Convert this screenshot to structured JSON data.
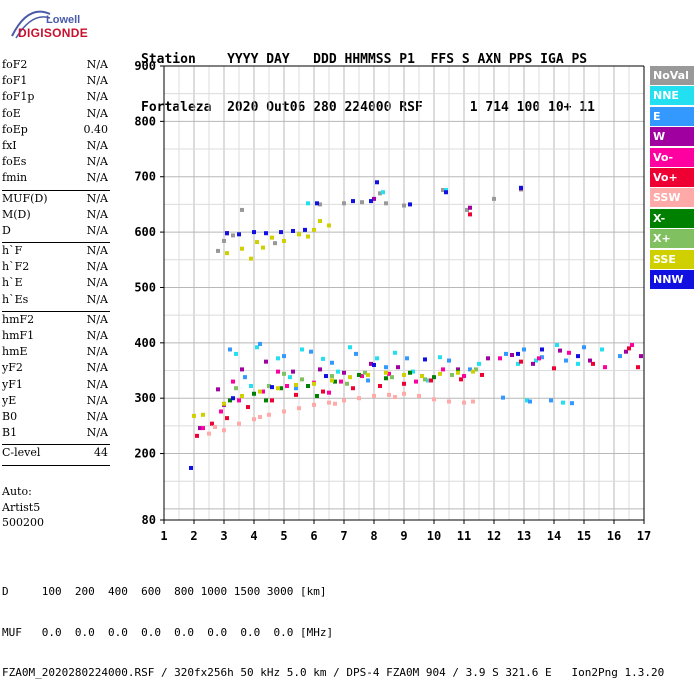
{
  "logo": {
    "top": "Lowell",
    "bottom": "DIGISONDE"
  },
  "header": {
    "line1": "Station    YYYY DAY   DDD HHMMSS P1  FFS S AXN PPS IGA PS",
    "line2": "Fortaleza  2020 Out06 280 224000 RSF      1 714 100 10+ 11"
  },
  "param_groups": [
    [
      {
        "label": "foF2",
        "value": "N/A"
      },
      {
        "label": "foF1",
        "value": "N/A"
      },
      {
        "label": "foF1p",
        "value": "N/A"
      },
      {
        "label": "foE",
        "value": "N/A"
      },
      {
        "label": "foEp",
        "value": "0.40"
      },
      {
        "label": "fxI",
        "value": "N/A"
      },
      {
        "label": "foEs",
        "value": "N/A"
      },
      {
        "label": "fmin",
        "value": "N/A"
      }
    ],
    [
      {
        "label": "MUF(D)",
        "value": "N/A"
      },
      {
        "label": "M(D)",
        "value": "N/A"
      },
      {
        "label": "D",
        "value": "N/A"
      }
    ],
    [
      {
        "label": "h`F",
        "value": "N/A"
      },
      {
        "label": "h`F2",
        "value": "N/A"
      },
      {
        "label": "h`E",
        "value": "N/A"
      },
      {
        "label": "h`Es",
        "value": "N/A"
      }
    ],
    [
      {
        "label": "hmF2",
        "value": "N/A"
      },
      {
        "label": "hmF1",
        "value": "N/A"
      },
      {
        "label": "hmE",
        "value": "N/A"
      },
      {
        "label": "yF2",
        "value": "N/A"
      },
      {
        "label": "yF1",
        "value": "N/A"
      },
      {
        "label": "yE",
        "value": "N/A"
      },
      {
        "label": "B0",
        "value": "N/A"
      },
      {
        "label": "B1",
        "value": "N/A"
      }
    ],
    [
      {
        "label": "C-level",
        "value": "44"
      }
    ]
  ],
  "autoscaling": {
    "line1": "Auto:",
    "line2": "Artist5",
    "line3": "500200"
  },
  "legend": [
    {
      "label": "NoVal",
      "color": "#999999"
    },
    {
      "label": "NNE",
      "color": "#22e0f0"
    },
    {
      "label": "E",
      "color": "#3399ff"
    },
    {
      "label": "W",
      "color": "#a0009f"
    },
    {
      "label": "Vo-",
      "color": "#ff00a0"
    },
    {
      "label": "Vo+",
      "color": "#ee0033"
    },
    {
      "label": "SSW",
      "color": "#ffaaa8"
    },
    {
      "label": "X-",
      "color": "#008000"
    },
    {
      "label": "X+",
      "color": "#80c060"
    },
    {
      "label": "SSE",
      "color": "#d0d000"
    },
    {
      "label": "NNW",
      "color": "#1010e0"
    }
  ],
  "footer": {
    "line1": "D     100  200  400  600  800 1000 1500 3000 [km]",
    "line2": "MUF   0.0  0.0  0.0  0.0  0.0  0.0  0.0  0.0 [MHz]",
    "line3": "FZA0M_2020280224000.RSF / 320fx256h 50 kHz 5.0 km / DPS-4 FZA0M 904 / 3.9 S 321.6 E   Ion2Png 1.3.20"
  },
  "chart_data": {
    "type": "scatter",
    "title": "",
    "xlabel": "",
    "ylabel": "",
    "xlim": [
      1,
      17
    ],
    "ylim": [
      80,
      900
    ],
    "x_ticks": [
      1,
      2,
      3,
      4,
      5,
      6,
      7,
      8,
      9,
      10,
      11,
      12,
      13,
      14,
      15,
      16,
      17
    ],
    "y_ticks": [
      80,
      200,
      300,
      400,
      500,
      600,
      700,
      800,
      900
    ],
    "grid": true,
    "legend_position": "right",
    "series": [
      {
        "name": "NNE",
        "color": "#22e0f0",
        "points": [
          [
            3.4,
            380
          ],
          [
            4.1,
            392
          ],
          [
            4.8,
            372
          ],
          [
            5.6,
            388
          ],
          [
            6.3,
            371
          ],
          [
            7.2,
            392
          ],
          [
            8.1,
            372
          ],
          [
            8.7,
            382
          ],
          [
            9.3,
            348
          ],
          [
            10.2,
            374
          ],
          [
            11.5,
            362
          ],
          [
            12.8,
            362
          ],
          [
            13.4,
            368
          ],
          [
            14.1,
            396
          ],
          [
            14.8,
            362
          ],
          [
            15.6,
            388
          ],
          [
            3.9,
            322
          ],
          [
            5.2,
            338
          ],
          [
            6.8,
            348
          ],
          [
            9.8,
            332
          ],
          [
            13.1,
            296
          ],
          [
            14.3,
            292
          ],
          [
            8.3,
            672
          ],
          [
            10.4,
            676
          ],
          [
            5.8,
            652
          ]
        ]
      },
      {
        "name": "E",
        "color": "#3399ff",
        "points": [
          [
            3.2,
            388
          ],
          [
            4.2,
            398
          ],
          [
            5.0,
            376
          ],
          [
            5.9,
            384
          ],
          [
            6.6,
            364
          ],
          [
            7.4,
            380
          ],
          [
            8.4,
            356
          ],
          [
            9.1,
            372
          ],
          [
            10.5,
            368
          ],
          [
            11.2,
            352
          ],
          [
            12.4,
            380
          ],
          [
            13.0,
            388
          ],
          [
            13.6,
            374
          ],
          [
            14.4,
            368
          ],
          [
            15.0,
            392
          ],
          [
            16.2,
            376
          ],
          [
            13.2,
            294
          ],
          [
            13.9,
            296
          ],
          [
            14.6,
            291
          ],
          [
            12.3,
            301
          ],
          [
            3.7,
            338
          ],
          [
            5.4,
            318
          ],
          [
            7.8,
            332
          ]
        ]
      },
      {
        "name": "W",
        "color": "#a0009f",
        "points": [
          [
            2.8,
            316
          ],
          [
            3.6,
            352
          ],
          [
            4.4,
            366
          ],
          [
            5.3,
            348
          ],
          [
            6.2,
            352
          ],
          [
            7.0,
            346
          ],
          [
            7.9,
            362
          ],
          [
            8.8,
            356
          ],
          [
            9.6,
            340
          ],
          [
            10.8,
            352
          ],
          [
            11.8,
            372
          ],
          [
            12.6,
            378
          ],
          [
            13.3,
            362
          ],
          [
            14.2,
            386
          ],
          [
            15.2,
            368
          ],
          [
            16.4,
            384
          ],
          [
            16.9,
            376
          ],
          [
            2.2,
            246
          ],
          [
            3.0,
            288
          ],
          [
            3.1,
            598
          ],
          [
            8.0,
            660
          ],
          [
            12.9,
            679
          ],
          [
            11.2,
            644
          ]
        ]
      },
      {
        "name": "Vo-",
        "color": "#ff00a0",
        "points": [
          [
            2.3,
            246
          ],
          [
            2.9,
            276
          ],
          [
            3.5,
            296
          ],
          [
            4.3,
            312
          ],
          [
            5.1,
            322
          ],
          [
            6.0,
            328
          ],
          [
            6.9,
            330
          ],
          [
            7.6,
            340
          ],
          [
            8.5,
            344
          ],
          [
            9.4,
            330
          ],
          [
            10.3,
            352
          ],
          [
            11.0,
            340
          ],
          [
            12.2,
            372
          ],
          [
            13.5,
            372
          ],
          [
            14.5,
            382
          ],
          [
            15.7,
            356
          ],
          [
            16.6,
            396
          ],
          [
            3.3,
            330
          ],
          [
            4.8,
            348
          ],
          [
            6.5,
            310
          ]
        ]
      },
      {
        "name": "Vo+",
        "color": "#ee0033",
        "points": [
          [
            2.1,
            232
          ],
          [
            2.6,
            254
          ],
          [
            3.1,
            264
          ],
          [
            3.8,
            284
          ],
          [
            4.6,
            296
          ],
          [
            5.4,
            306
          ],
          [
            6.3,
            312
          ],
          [
            7.3,
            318
          ],
          [
            8.2,
            322
          ],
          [
            9.0,
            326
          ],
          [
            9.9,
            332
          ],
          [
            10.9,
            334
          ],
          [
            11.6,
            342
          ],
          [
            12.9,
            366
          ],
          [
            14.0,
            354
          ],
          [
            15.3,
            362
          ],
          [
            16.5,
            390
          ],
          [
            16.8,
            356
          ],
          [
            11.2,
            632
          ]
        ]
      },
      {
        "name": "SSW",
        "color": "#ffaaa8",
        "points": [
          [
            2.5,
            236
          ],
          [
            3.0,
            242
          ],
          [
            3.5,
            254
          ],
          [
            4.0,
            262
          ],
          [
            4.5,
            270
          ],
          [
            5.0,
            276
          ],
          [
            5.5,
            282
          ],
          [
            6.0,
            288
          ],
          [
            6.5,
            292
          ],
          [
            7.0,
            296
          ],
          [
            7.5,
            300
          ],
          [
            8.0,
            304
          ],
          [
            8.5,
            306
          ],
          [
            9.0,
            308
          ],
          [
            9.5,
            304
          ],
          [
            10.0,
            298
          ],
          [
            10.5,
            294
          ],
          [
            11.0,
            292
          ],
          [
            11.3,
            294
          ],
          [
            2.7,
            248
          ],
          [
            4.2,
            266
          ],
          [
            6.7,
            290
          ],
          [
            8.7,
            302
          ]
        ]
      },
      {
        "name": "X-",
        "color": "#008000",
        "points": [
          [
            3.2,
            296
          ],
          [
            4.0,
            308
          ],
          [
            4.9,
            318
          ],
          [
            5.8,
            322
          ],
          [
            6.7,
            330
          ],
          [
            7.5,
            342
          ],
          [
            8.4,
            336
          ],
          [
            9.2,
            346
          ],
          [
            10.0,
            338
          ],
          [
            10.8,
            348
          ],
          [
            4.4,
            296
          ],
          [
            6.1,
            304
          ]
        ]
      },
      {
        "name": "X+",
        "color": "#80c060",
        "points": [
          [
            3.4,
            318
          ],
          [
            4.5,
            322
          ],
          [
            5.6,
            334
          ],
          [
            6.6,
            340
          ],
          [
            7.7,
            346
          ],
          [
            8.6,
            338
          ],
          [
            9.7,
            334
          ],
          [
            10.6,
            342
          ],
          [
            11.4,
            352
          ],
          [
            5.0,
            344
          ],
          [
            7.1,
            326
          ]
        ]
      },
      {
        "name": "SSE",
        "color": "#d0d000",
        "points": [
          [
            3.0,
            290
          ],
          [
            3.6,
            304
          ],
          [
            4.2,
            312
          ],
          [
            4.8,
            318
          ],
          [
            5.4,
            324
          ],
          [
            6.0,
            326
          ],
          [
            6.6,
            332
          ],
          [
            7.2,
            338
          ],
          [
            7.8,
            342
          ],
          [
            8.4,
            346
          ],
          [
            9.0,
            342
          ],
          [
            9.6,
            340
          ],
          [
            10.2,
            344
          ],
          [
            10.8,
            346
          ],
          [
            11.3,
            348
          ],
          [
            3.1,
            562
          ],
          [
            3.6,
            570
          ],
          [
            4.1,
            582
          ],
          [
            4.6,
            590
          ],
          [
            5.0,
            584
          ],
          [
            5.5,
            596
          ],
          [
            6.0,
            604
          ],
          [
            6.5,
            612
          ],
          [
            3.9,
            552
          ],
          [
            4.3,
            572
          ],
          [
            5.8,
            592
          ],
          [
            6.2,
            620
          ],
          [
            2.3,
            270
          ],
          [
            2.0,
            268
          ]
        ]
      },
      {
        "name": "NNW",
        "color": "#1010e0",
        "points": [
          [
            1.9,
            174
          ],
          [
            3.1,
            598
          ],
          [
            3.5,
            596
          ],
          [
            4.0,
            600
          ],
          [
            4.4,
            598
          ],
          [
            4.9,
            600
          ],
          [
            5.3,
            602
          ],
          [
            5.7,
            604
          ],
          [
            3.3,
            300
          ],
          [
            4.6,
            320
          ],
          [
            6.4,
            340
          ],
          [
            8.0,
            360
          ],
          [
            9.7,
            370
          ],
          [
            12.8,
            380
          ],
          [
            13.6,
            388
          ],
          [
            14.8,
            376
          ],
          [
            8.1,
            690
          ],
          [
            7.9,
            656
          ],
          [
            9.2,
            650
          ],
          [
            12.9,
            680
          ],
          [
            10.4,
            672
          ],
          [
            6.1,
            652
          ],
          [
            7.3,
            656
          ]
        ]
      }
    ],
    "noval_points": [
      [
        3.3,
        594
      ],
      [
        6.2,
        650
      ],
      [
        7.0,
        652
      ],
      [
        7.6,
        654
      ],
      [
        8.2,
        670
      ],
      [
        8.4,
        652
      ],
      [
        9.0,
        648
      ],
      [
        10.3,
        676
      ],
      [
        11.1,
        640
      ],
      [
        12.0,
        660
      ],
      [
        12.9,
        677
      ],
      [
        3.0,
        584
      ],
      [
        2.8,
        566
      ],
      [
        4.7,
        580
      ],
      [
        3.6,
        640
      ]
    ]
  }
}
